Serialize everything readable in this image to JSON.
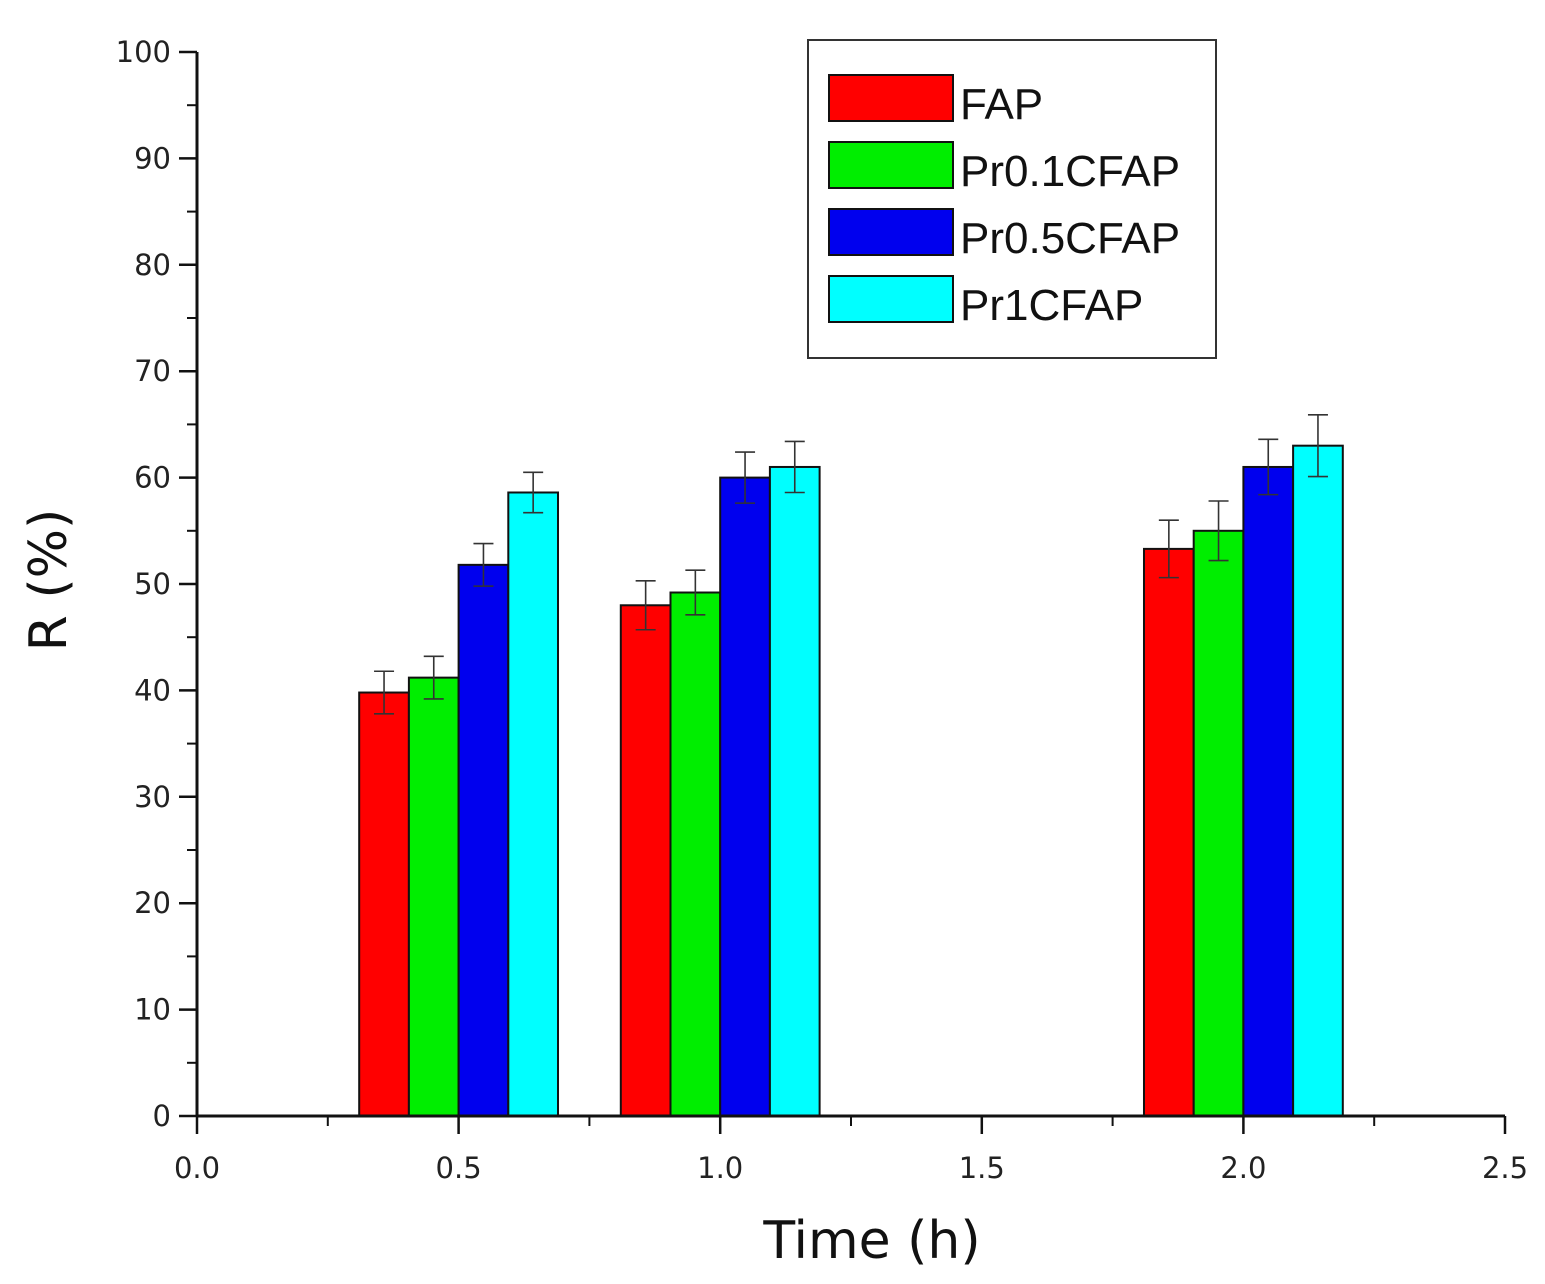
{
  "chart_data": {
    "type": "bar",
    "xlabel": "Time (h)",
    "ylabel": "R (%)",
    "xlim": [
      0.0,
      2.5
    ],
    "ylim": [
      0,
      100
    ],
    "x_ticks": [
      0.0,
      0.5,
      1.0,
      1.5,
      2.0,
      2.5
    ],
    "x_tick_labels": [
      "0.0",
      "0.5",
      "1.0",
      "1.5",
      "2.0",
      "2.5"
    ],
    "y_ticks": [
      0,
      10,
      20,
      30,
      40,
      50,
      60,
      70,
      80,
      90,
      100
    ],
    "y_tick_labels": [
      "0",
      "10",
      "20",
      "30",
      "40",
      "50",
      "60",
      "70",
      "80",
      "90",
      "100"
    ],
    "grid": false,
    "legend_position": "top-right",
    "x": [
      0.5,
      1.0,
      2.0
    ],
    "series": [
      {
        "name": "FAP",
        "color": "#ff0000",
        "values": [
          39.8,
          48.0,
          53.3
        ],
        "errors": [
          2.0,
          2.3,
          2.7
        ]
      },
      {
        "name": "Pr0.1CFAP",
        "color": "#00ee00",
        "values": [
          41.2,
          49.2,
          55.0
        ],
        "errors": [
          2.0,
          2.1,
          2.8
        ]
      },
      {
        "name": "Pr0.5CFAP",
        "color": "#0000ee",
        "values": [
          51.8,
          60.0,
          61.0
        ],
        "errors": [
          2.0,
          2.4,
          2.6
        ]
      },
      {
        "name": "Pr1CFAP",
        "color": "#00ffff",
        "values": [
          58.6,
          61.0,
          63.0
        ],
        "errors": [
          1.9,
          2.4,
          2.9
        ]
      }
    ]
  }
}
